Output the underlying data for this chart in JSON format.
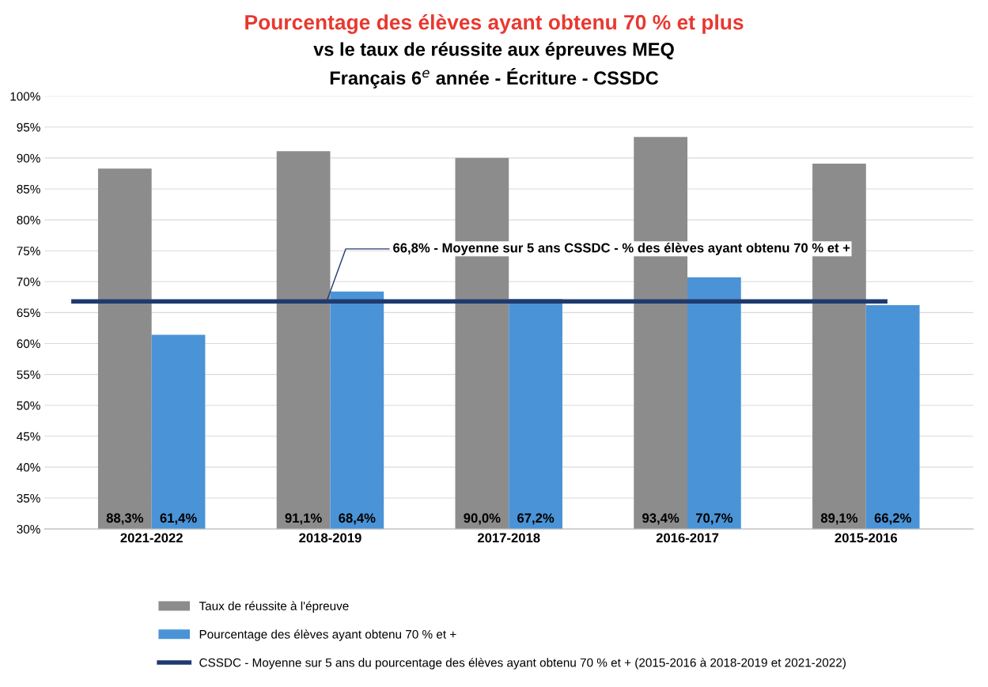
{
  "chart_data": {
    "type": "bar",
    "title": "Pourcentage des élèves ayant obtenu 70 % et plus",
    "subtitle": "vs le taux de réussite aux épreuves MEQ\nFrançais 6$^{e}$ année - Écriture - CSSDC",
    "categories": [
      "2021-2022",
      "2018-2019",
      "2017-2018",
      "2016-2017",
      "2015-2016"
    ],
    "series": [
      {
        "name": "Taux de réussite à l'épreuve",
        "color": "#8c8c8c",
        "values": [
          88.3,
          91.1,
          90.0,
          93.4,
          89.1
        ],
        "value_labels": [
          "88,3%",
          "91,1%",
          "90,0%",
          "93,4%",
          "89,1%"
        ]
      },
      {
        "name": "Pourcentage des élèves ayant obtenu 70 % et +",
        "color": "#4a93d6",
        "values": [
          61.4,
          68.4,
          67.2,
          70.7,
          66.2
        ],
        "value_labels": [
          "61,4%",
          "68,4%",
          "67,2%",
          "70,7%",
          "66,2%"
        ]
      }
    ],
    "ref_lines": [
      {
        "axis": "y",
        "value": 66.8,
        "label": "CSSDC - Moyenne sur 5 ans du pourcentage des élèves ayant obtenu 70 % et + (2015-2016 à 2018-2019 et 2021-2022)",
        "color": "#1f3a6e",
        "line_style": "solid"
      }
    ],
    "annotations": [
      {
        "text": "66,8% - Moyenne sur 5 ans CSSDC - % des élèves ayant obtenu 70 % et +",
        "x": "2018-2019",
        "y": 66.8
      }
    ],
    "ylim": [
      30,
      100
    ],
    "yticks": [
      {
        "value": 30,
        "label": "30%"
      },
      {
        "value": 35,
        "label": "35%"
      },
      {
        "value": 40,
        "label": "40%"
      },
      {
        "value": 45,
        "label": "45%"
      },
      {
        "value": 50,
        "label": "50%"
      },
      {
        "value": 55,
        "label": "55%"
      },
      {
        "value": 60,
        "label": "60%"
      },
      {
        "value": 65,
        "label": "65%"
      },
      {
        "value": 70,
        "label": "70%"
      },
      {
        "value": 75,
        "label": "75%"
      },
      {
        "value": 80,
        "label": "80%"
      },
      {
        "value": 85,
        "label": "85%"
      },
      {
        "value": 90,
        "label": "90%"
      },
      {
        "value": 95,
        "label": "95%"
      },
      {
        "value": 100,
        "label": "100%"
      }
    ],
    "grid": "y",
    "legend": "bottom"
  }
}
